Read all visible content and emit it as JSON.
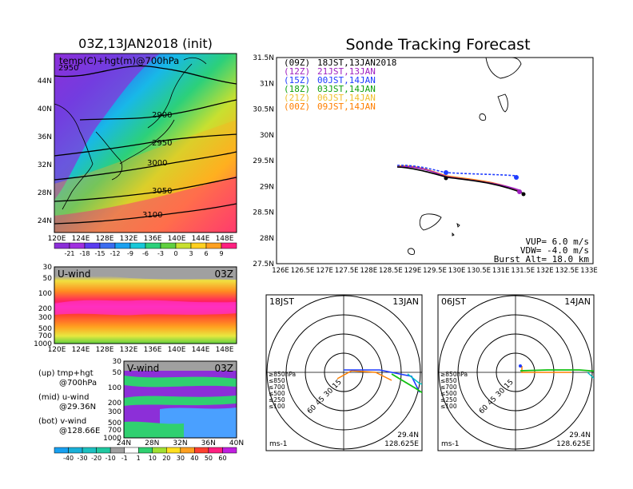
{
  "left": {
    "title": "03Z,13JAN2018 (init)",
    "map_label": "temp(C)+hgt(m)@700hPa",
    "map_lat_ticks": [
      "44N",
      "40N",
      "36N",
      "32N",
      "28N",
      "24N"
    ],
    "map_lon_ticks": [
      "120E",
      "124E",
      "128E",
      "132E",
      "136E",
      "140E",
      "144E",
      "148E"
    ],
    "contours": [
      "2900",
      "2950",
      "3000",
      "3050",
      "3100",
      "2950"
    ],
    "temp_colorbar": [
      "-21",
      "-18",
      "-15",
      "-12",
      "-9",
      "-6",
      "-3",
      "0",
      "3",
      "6",
      "9"
    ],
    "u_title": "U-wind",
    "u_time": "03Z",
    "v_title": "V-wind",
    "v_time": "03Z",
    "p_ticks": [
      "30",
      "50",
      "100",
      "200",
      "300",
      "500",
      "700",
      "1000"
    ],
    "v_lat_ticks": [
      "24N",
      "28N",
      "32N",
      "36N",
      "40N"
    ],
    "wind_colorbar": [
      "-40",
      "-30",
      "-20",
      "-10",
      "-1",
      "1",
      "10",
      "20",
      "30",
      "40",
      "50",
      "60"
    ],
    "notes": [
      "(up) tmp+hgt",
      "@700hPa",
      "(mid) u-wind",
      "@29.36N",
      "(bot) v-wind",
      "@128.66E"
    ]
  },
  "right": {
    "title": "Sonde Tracking Forecast",
    "legend": [
      {
        "utc": "(09Z)",
        "jst": "18JST,13JAN2018",
        "color": "#000000"
      },
      {
        "utc": "(12Z)",
        "jst": "21JST,13JAN",
        "color": "#a020c0"
      },
      {
        "utc": "(15Z)",
        "jst": "00JST,14JAN",
        "color": "#1e3cff"
      },
      {
        "utc": "(18Z)",
        "jst": "03JST,14JAN",
        "color": "#10a010"
      },
      {
        "utc": "(21Z)",
        "jst": "06JST,14JAN",
        "color": "#f0c030"
      },
      {
        "utc": "(00Z)",
        "jst": "09JST,14JAN",
        "color": "#ff7f00"
      }
    ],
    "lat_ticks": [
      "31.5N",
      "31N",
      "30.5N",
      "30N",
      "29.5N",
      "29N",
      "28.5N",
      "28N",
      "27.5N"
    ],
    "lon_ticks": [
      "126E",
      "126.5E",
      "127E",
      "127.5E",
      "128E",
      "128.5E",
      "129E",
      "129.5E",
      "130E",
      "130.5E",
      "131E",
      "131.5E",
      "132E",
      "132.5E",
      "133E"
    ],
    "params": [
      "VUP=  6.0 m/s",
      "VDW= -4.0 m/s",
      "Burst Alt= 18.0 km"
    ]
  },
  "polars": [
    {
      "left": "18JST",
      "right": "13JAN",
      "lat": "29.4N",
      "lon": "128.625E",
      "unit": "ms-1",
      "rings": [
        "15",
        "30",
        "45",
        "60"
      ]
    },
    {
      "left": "06JST",
      "right": "14JAN",
      "lat": "29.4N",
      "lon": "128.625E",
      "unit": "ms-1",
      "rings": [
        "15",
        "30",
        "45",
        "60"
      ]
    }
  ],
  "polar_levels": [
    "≥850hPa",
    "≤850",
    "≤700",
    "≤500",
    "≤250",
    "≤100"
  ],
  "polar_level_colors": [
    "#ff0000",
    "#ff7f00",
    "#f0c030",
    "#10c010",
    "#00c0c0",
    "#1e3cff"
  ]
}
